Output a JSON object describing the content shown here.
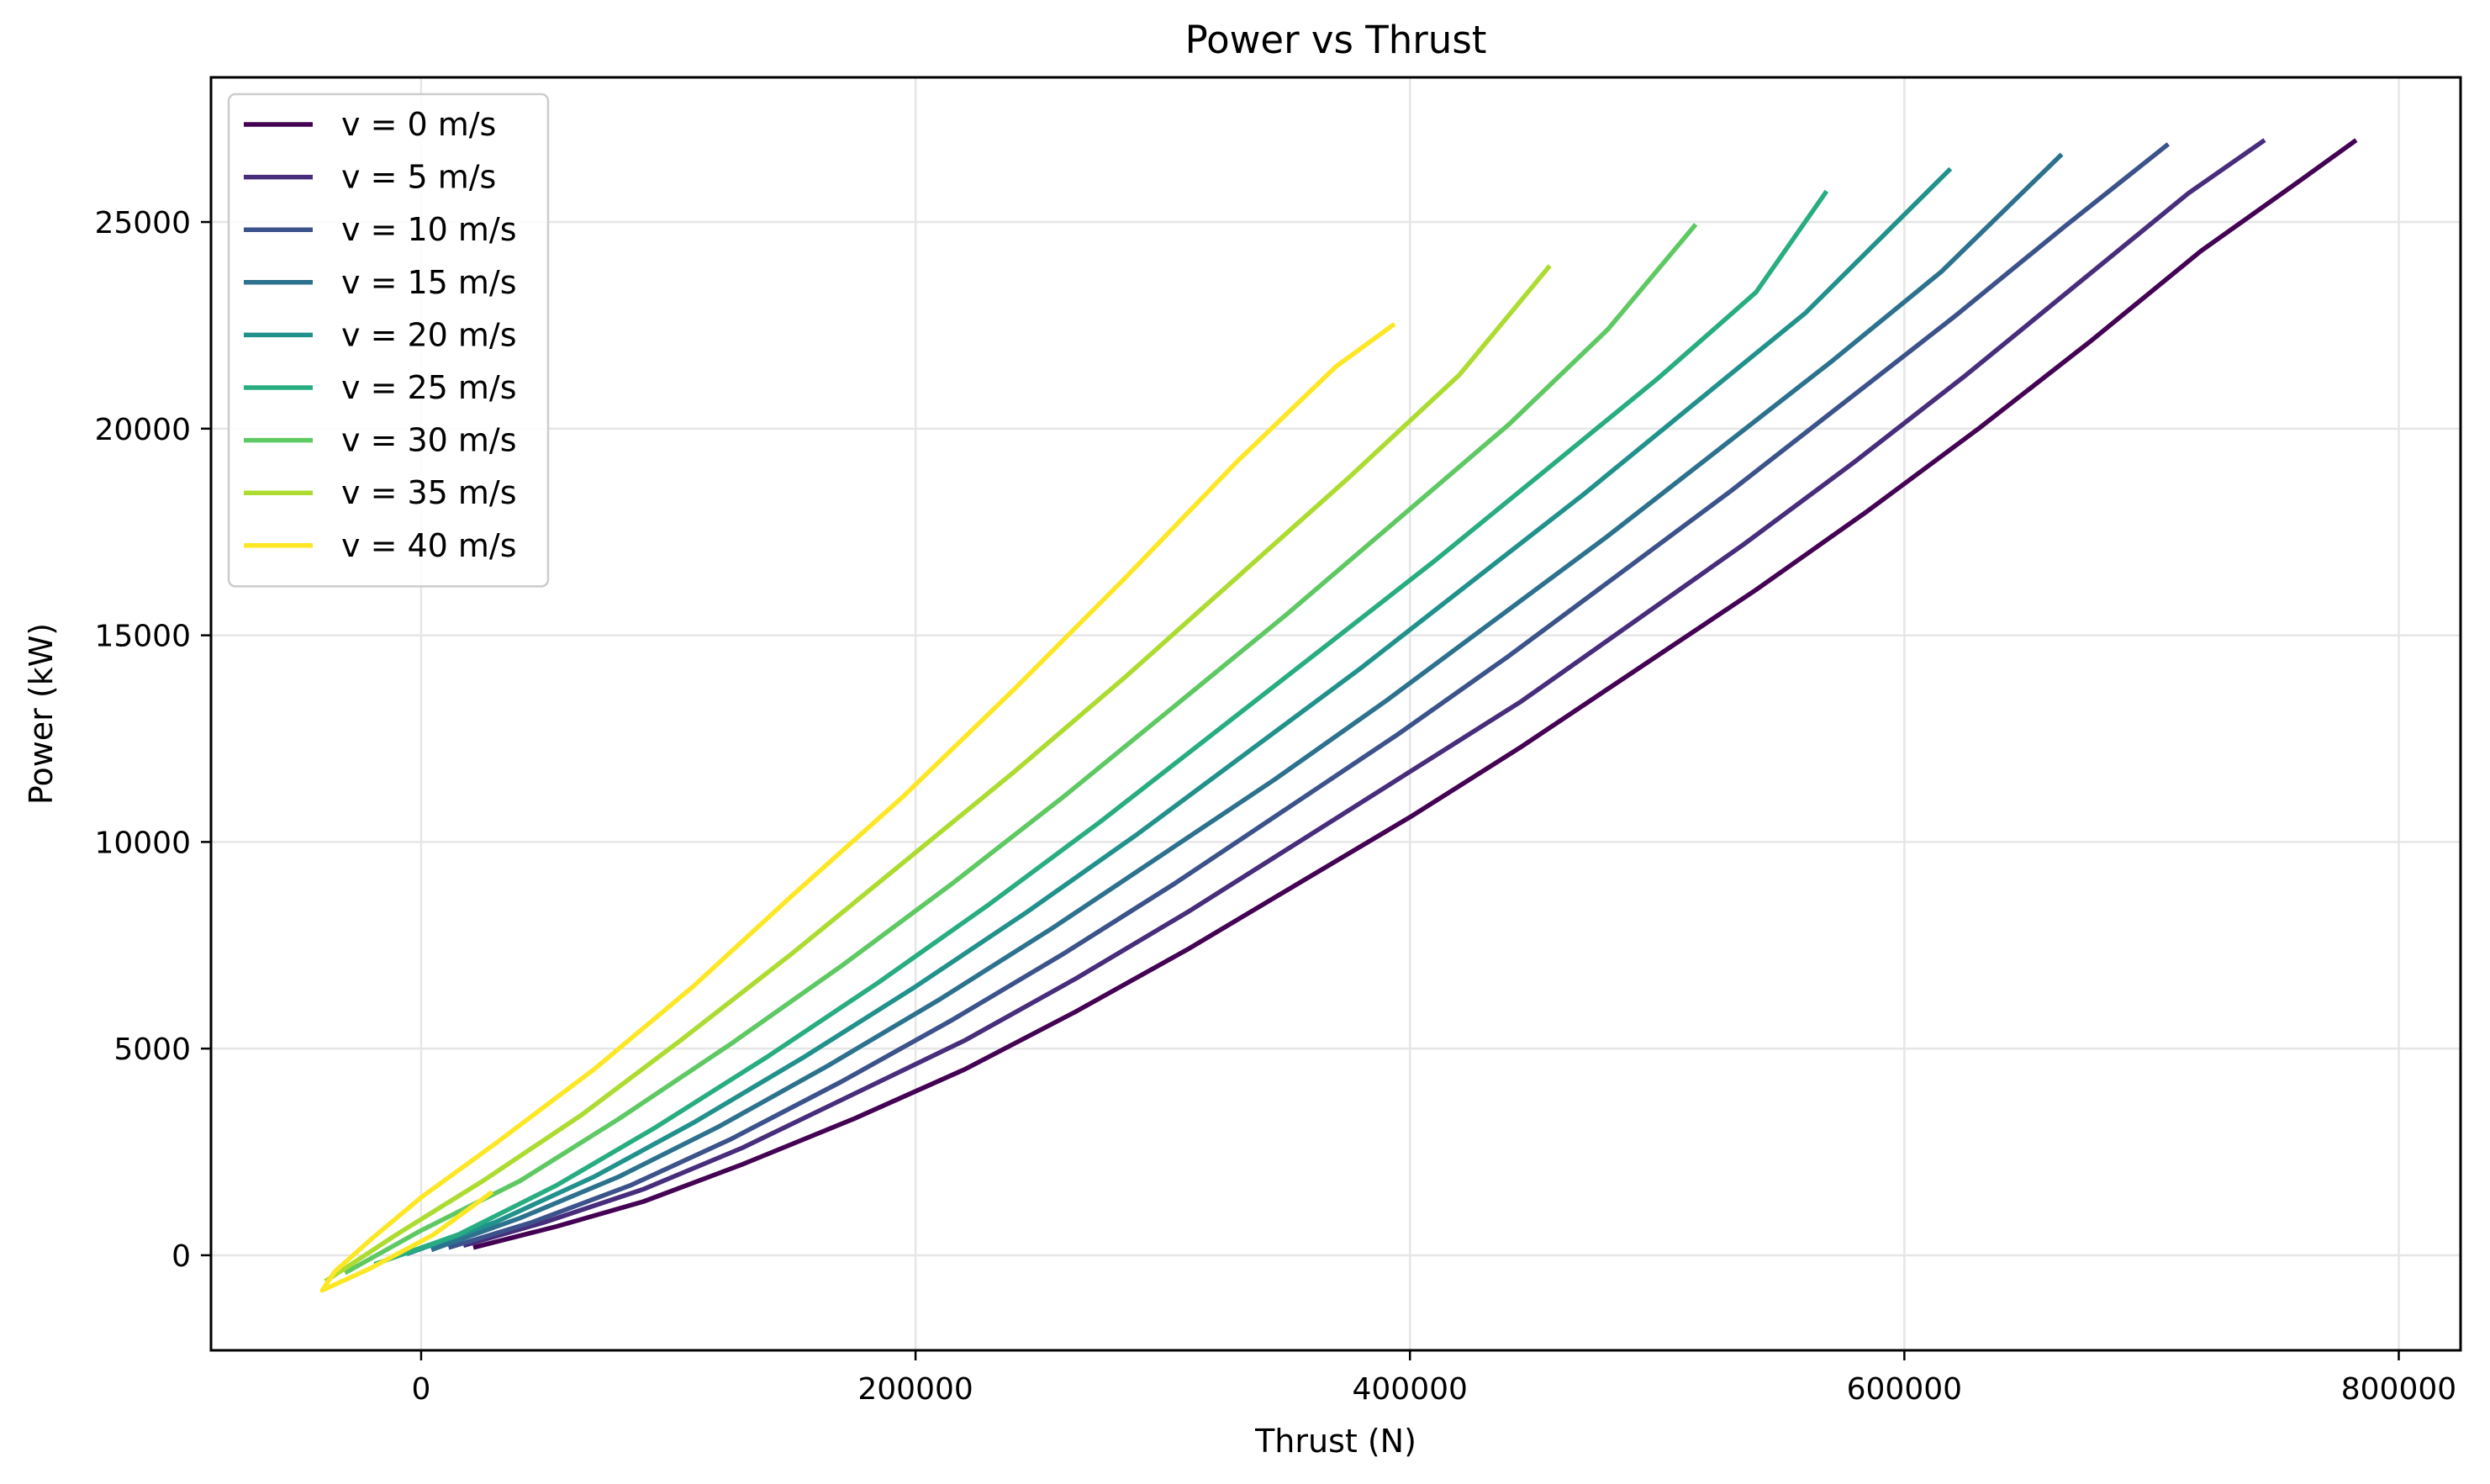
{
  "chart_data": {
    "type": "line",
    "title": "Power vs Thrust",
    "xlabel": "Thrust (N)",
    "ylabel": "Power (kW)",
    "xlim": [
      -85000,
      825000
    ],
    "ylim": [
      -2300,
      28500
    ],
    "xticks": [
      0,
      200000,
      400000,
      600000,
      800000
    ],
    "yticks": [
      0,
      5000,
      10000,
      15000,
      20000,
      25000
    ],
    "grid": true,
    "legend_position": "top-left",
    "series": [
      {
        "name": "v = 0 m/s",
        "color": "#440154",
        "points": [
          [
            22000,
            200
          ],
          [
            55000,
            700
          ],
          [
            90000,
            1300
          ],
          [
            130000,
            2200
          ],
          [
            175000,
            3300
          ],
          [
            220000,
            4500
          ],
          [
            265000,
            5900
          ],
          [
            310000,
            7400
          ],
          [
            355000,
            9000
          ],
          [
            400000,
            10600
          ],
          [
            445000,
            12300
          ],
          [
            490000,
            14100
          ],
          [
            540000,
            16100
          ],
          [
            585000,
            18000
          ],
          [
            630000,
            20000
          ],
          [
            675000,
            22100
          ],
          [
            720000,
            24300
          ],
          [
            760000,
            26000
          ],
          [
            782000,
            26950
          ]
        ]
      },
      {
        "name": "v = 5 m/s",
        "color": "#472d7b",
        "points": [
          [
            18000,
            250
          ],
          [
            50000,
            800
          ],
          [
            90000,
            1600
          ],
          [
            130000,
            2600
          ],
          [
            175000,
            3900
          ],
          [
            220000,
            5200
          ],
          [
            265000,
            6700
          ],
          [
            310000,
            8300
          ],
          [
            355000,
            10000
          ],
          [
            400000,
            11700
          ],
          [
            445000,
            13400
          ],
          [
            490000,
            15300
          ],
          [
            535000,
            17200
          ],
          [
            580000,
            19200
          ],
          [
            625000,
            21300
          ],
          [
            670000,
            23500
          ],
          [
            715000,
            25700
          ],
          [
            745000,
            26950
          ]
        ]
      },
      {
        "name": "v = 10 m/s",
        "color": "#3b528b",
        "points": [
          [
            12000,
            200
          ],
          [
            45000,
            800
          ],
          [
            85000,
            1700
          ],
          [
            125000,
            2800
          ],
          [
            170000,
            4200
          ],
          [
            215000,
            5700
          ],
          [
            260000,
            7300
          ],
          [
            305000,
            9000
          ],
          [
            350000,
            10800
          ],
          [
            395000,
            12600
          ],
          [
            440000,
            14500
          ],
          [
            485000,
            16500
          ],
          [
            530000,
            18500
          ],
          [
            575000,
            20600
          ],
          [
            620000,
            22700
          ],
          [
            665000,
            24900
          ],
          [
            706000,
            26850
          ]
        ]
      },
      {
        "name": "v = 15 m/s",
        "color": "#2c728e",
        "points": [
          [
            5000,
            150
          ],
          [
            40000,
            900
          ],
          [
            80000,
            1900
          ],
          [
            120000,
            3100
          ],
          [
            165000,
            4600
          ],
          [
            210000,
            6200
          ],
          [
            255000,
            7900
          ],
          [
            300000,
            9700
          ],
          [
            345000,
            11500
          ],
          [
            390000,
            13400
          ],
          [
            435000,
            15400
          ],
          [
            480000,
            17400
          ],
          [
            525000,
            19500
          ],
          [
            570000,
            21600
          ],
          [
            615000,
            23800
          ],
          [
            663000,
            26600
          ]
        ]
      },
      {
        "name": "v = 20 m/s",
        "color": "#21918c",
        "points": [
          [
            -5000,
            50
          ],
          [
            30000,
            800
          ],
          [
            70000,
            1900
          ],
          [
            110000,
            3200
          ],
          [
            155000,
            4800
          ],
          [
            200000,
            6500
          ],
          [
            245000,
            8300
          ],
          [
            290000,
            10200
          ],
          [
            335000,
            12200
          ],
          [
            380000,
            14200
          ],
          [
            425000,
            16300
          ],
          [
            470000,
            18400
          ],
          [
            515000,
            20600
          ],
          [
            560000,
            22800
          ],
          [
            618000,
            26250
          ]
        ]
      },
      {
        "name": "v = 25 m/s",
        "color": "#27ad81",
        "points": [
          [
            -18000,
            -200
          ],
          [
            15000,
            500
          ],
          [
            55000,
            1700
          ],
          [
            95000,
            3100
          ],
          [
            140000,
            4800
          ],
          [
            185000,
            6600
          ],
          [
            230000,
            8500
          ],
          [
            275000,
            10500
          ],
          [
            320000,
            12600
          ],
          [
            365000,
            14700
          ],
          [
            410000,
            16800
          ],
          [
            455000,
            19000
          ],
          [
            500000,
            21200
          ],
          [
            540000,
            23300
          ],
          [
            568000,
            25700
          ]
        ]
      },
      {
        "name": "v = 30 m/s",
        "color": "#5ec962",
        "points": [
          [
            -30000,
            -400
          ],
          [
            0,
            600
          ],
          [
            40000,
            1800
          ],
          [
            80000,
            3300
          ],
          [
            125000,
            5100
          ],
          [
            170000,
            7000
          ],
          [
            215000,
            9000
          ],
          [
            260000,
            11100
          ],
          [
            305000,
            13300
          ],
          [
            350000,
            15500
          ],
          [
            395000,
            17800
          ],
          [
            440000,
            20100
          ],
          [
            480000,
            22400
          ],
          [
            515000,
            24900
          ]
        ]
      },
      {
        "name": "v = 35 m/s",
        "color": "#addc30",
        "points": [
          [
            -38000,
            -600
          ],
          [
            -10000,
            500
          ],
          [
            25000,
            1800
          ],
          [
            65000,
            3400
          ],
          [
            105000,
            5200
          ],
          [
            150000,
            7300
          ],
          [
            195000,
            9500
          ],
          [
            240000,
            11700
          ],
          [
            285000,
            14000
          ],
          [
            330000,
            16400
          ],
          [
            375000,
            18800
          ],
          [
            420000,
            21300
          ],
          [
            456000,
            23900
          ]
        ]
      },
      {
        "name": "v = 40 m/s",
        "color": "#fde725",
        "points": [
          [
            28000,
            1500
          ],
          [
            5000,
            500
          ],
          [
            -20000,
            -300
          ],
          [
            -40000,
            -850
          ],
          [
            -35000,
            -400
          ],
          [
            -20000,
            400
          ],
          [
            0,
            1400
          ],
          [
            30000,
            2700
          ],
          [
            70000,
            4500
          ],
          [
            110000,
            6500
          ],
          [
            150000,
            8700
          ],
          [
            195000,
            11100
          ],
          [
            240000,
            13700
          ],
          [
            285000,
            16400
          ],
          [
            330000,
            19200
          ],
          [
            370000,
            21500
          ],
          [
            393000,
            22500
          ]
        ]
      }
    ]
  }
}
